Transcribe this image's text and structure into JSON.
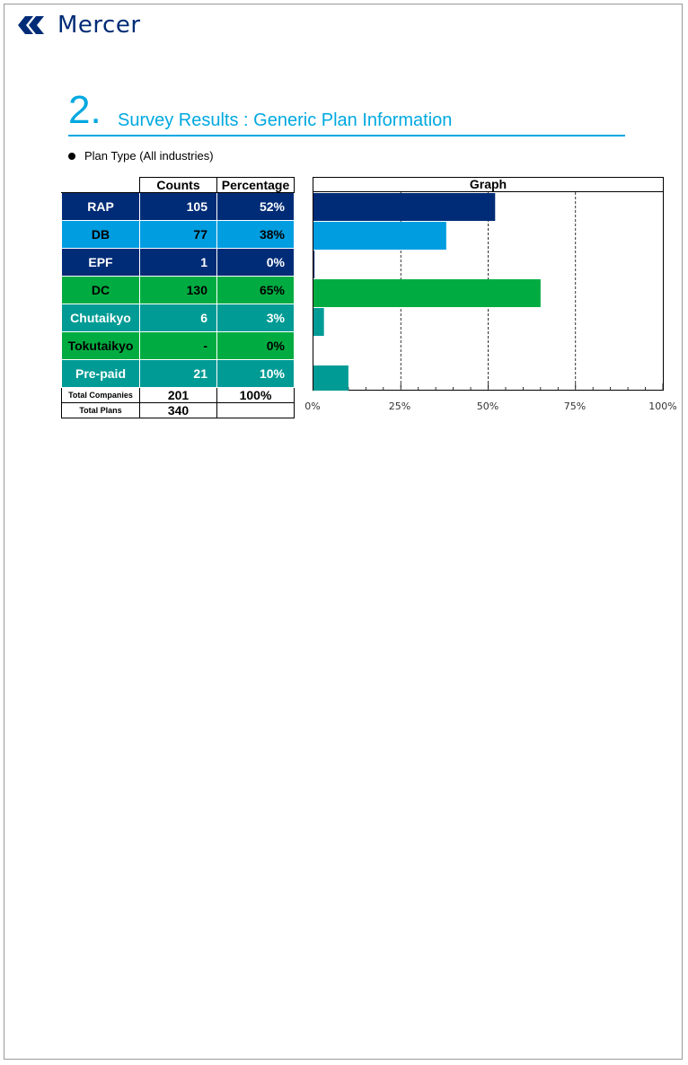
{
  "brand": {
    "name": "Mercer",
    "color": "#002c77",
    "logo_icon": "mercer-logo-icon"
  },
  "heading": {
    "number": "2.",
    "title": "Survey Results : Generic Plan Information",
    "accent": "#00a8e0"
  },
  "section": {
    "label": "Plan Type (All industries)"
  },
  "table": {
    "headers": {
      "counts": "Counts",
      "percentage": "Percentage"
    },
    "rows": [
      {
        "label": "RAP",
        "count": "105",
        "pct": "52%",
        "color": "#002c77",
        "text_color": "#ffffff"
      },
      {
        "label": "DB",
        "count": "77",
        "pct": "38%",
        "color": "#009de0",
        "text_color": "#000000"
      },
      {
        "label": "EPF",
        "count": "1",
        "pct": "0%",
        "color": "#002c77",
        "text_color": "#ffffff"
      },
      {
        "label": "DC",
        "count": "130",
        "pct": "65%",
        "color": "#00ac41",
        "text_color": "#000000"
      },
      {
        "label": "Chutaikyo",
        "count": "6",
        "pct": "3%",
        "color": "#009b95",
        "text_color": "#ffffff"
      },
      {
        "label": "Tokutaikyo",
        "count": "-",
        "pct": "0%",
        "color": "#00ac41",
        "text_color": "#000000"
      },
      {
        "label": "Pre-paid",
        "count": "21",
        "pct": "10%",
        "color": "#009b95",
        "text_color": "#ffffff"
      }
    ],
    "totals": [
      {
        "label": "Total Companies",
        "count": "201",
        "pct": "100%"
      },
      {
        "label": "Total Plans",
        "count": "340",
        "pct": ""
      }
    ]
  },
  "chart_data": {
    "type": "bar",
    "title": "Graph",
    "orientation": "horizontal",
    "categories": [
      "RAP",
      "DB",
      "EPF",
      "DC",
      "Chutaikyo",
      "Tokutaikyo",
      "Pre-paid"
    ],
    "values": [
      52,
      38,
      0.3,
      65,
      3,
      0,
      10
    ],
    "colors": [
      "#002c77",
      "#009de0",
      "#002c77",
      "#00ac41",
      "#009b95",
      "#00ac41",
      "#009b95"
    ],
    "xlim": [
      0,
      100
    ],
    "xticks": [
      "0%",
      "25%",
      "50%",
      "75%",
      "100%"
    ],
    "grid": "dashed vertical at 25%, 50%, 75%"
  }
}
